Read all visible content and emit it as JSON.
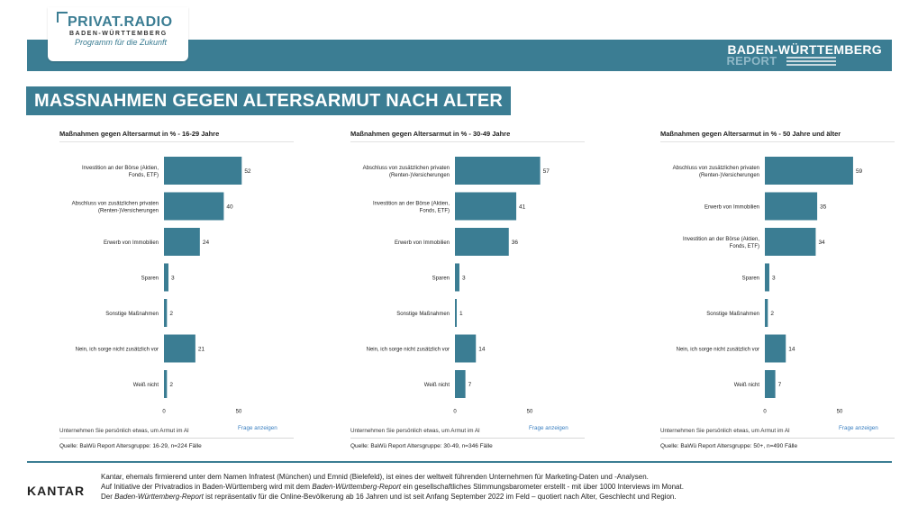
{
  "brand": {
    "logo_title": "PRIVAT.RADIO",
    "logo_subtitle": "BADEN-WÜRTTEMBERG",
    "logo_tagline": "Programm für die Zukunft",
    "report_line1": "BADEN-WÜRTTEMBERG",
    "report_line2": "REPORT",
    "accent_color": "#3b7d93"
  },
  "main_title": "MASSNAHMEN GEGEN ALTERSARMUT NACH ALTER",
  "panels": [
    {
      "title": "Maßnahmen gegen Altersarmut in % - 16-29 Jahre",
      "question": "Unternehmen Sie persönlich etwas, um Armut im Al",
      "link": "Frage anzeigen",
      "source": "Quelle: BaWü Report Altersgruppe: 16-29, n=224 Fälle"
    },
    {
      "title": "Maßnahmen gegen Altersarmut in % - 30-49 Jahre",
      "question": "Unternehmen Sie persönlich etwas, um Armut im Al",
      "link": "Frage anzeigen",
      "source": "Quelle: BaWü Report Altersgruppe: 30-49, n=346 Fälle"
    },
    {
      "title": "Maßnahmen gegen Altersarmut in % - 50 Jahre und älter",
      "question": "Unternehmen Sie persönlich etwas, um Armut im Al",
      "link": "Frage anzeigen",
      "source": "Quelle: BaWü Report Altersgruppe: 50+, n=490 Fälle"
    }
  ],
  "chart_data": [
    {
      "type": "bar",
      "title": "Maßnahmen gegen Altersarmut in % - 16-29 Jahre",
      "categories": [
        [
          "Investition an der Börse (Aktien,",
          "Fonds, ETF)"
        ],
        [
          "Abschluss von zusätzlichen privaten",
          "(Renten-)Versicherungen"
        ],
        [
          "Erwerb von Immobilien"
        ],
        [
          "Sparen"
        ],
        [
          "Sonstige Maßnahmen"
        ],
        [
          "Nein, ich sorge nicht zusätzlich vor"
        ],
        [
          "Weiß nicht"
        ]
      ],
      "values": [
        52,
        40,
        24,
        3,
        2,
        21,
        2
      ],
      "xlim": [
        0,
        100
      ],
      "xticks": [
        0,
        50
      ],
      "color": "#3b7d93"
    },
    {
      "type": "bar",
      "title": "Maßnahmen gegen Altersarmut in % - 30-49 Jahre",
      "categories": [
        [
          "Abschluss von zusätzlichen privaten",
          "(Renten-)Versicherungen"
        ],
        [
          "Investition an der Börse (Aktien,",
          "Fonds, ETF)"
        ],
        [
          "Erwerb von Immobilien"
        ],
        [
          "Sparen"
        ],
        [
          "Sonstige Maßnahmen"
        ],
        [
          "Nein, ich sorge nicht zusätzlich vor"
        ],
        [
          "Weiß nicht"
        ]
      ],
      "values": [
        57,
        41,
        36,
        3,
        1,
        14,
        7
      ],
      "xlim": [
        0,
        100
      ],
      "xticks": [
        0,
        50
      ],
      "color": "#3b7d93"
    },
    {
      "type": "bar",
      "title": "Maßnahmen gegen Altersarmut in % - 50 Jahre und älter",
      "categories": [
        [
          "Abschluss von zusätzlichen privaten",
          "(Renten-)Versicherungen"
        ],
        [
          "Erwerb von Immobilien"
        ],
        [
          "Investition an der Börse (Aktien,",
          "Fonds, ETF)"
        ],
        [
          "Sparen"
        ],
        [
          "Sonstige Maßnahmen"
        ],
        [
          "Nein, ich sorge nicht zusätzlich vor"
        ],
        [
          "Weiß nicht"
        ]
      ],
      "values": [
        59,
        35,
        34,
        3,
        2,
        14,
        7
      ],
      "xlim": [
        0,
        100
      ],
      "xticks": [
        0,
        50
      ],
      "color": "#3b7d93"
    }
  ],
  "footer": {
    "logo": "KANTAR",
    "line1": "Kantar, ehemals firmierend unter dem Namen Infratest (München) und Emnid  (Bielefeld), ist eines der weltweit führenden Unternehmen für Marketing-Daten und -Analysen.",
    "line2_a": "Auf Initiative der Privatradios in  Baden-Württemberg wird mit dem ",
    "line2_em": "Baden-Württemberg-Report",
    "line2_b": " ein gesellschaftliches Stimmungsbarometer erstellt - mit über 1000 Interviews im Monat.",
    "line3_a": "Der ",
    "line3_em": "Baden-Württemberg-Report",
    "line3_b": " ist repräsentativ für die Online-Bevölkerung ab 16 Jahren und ist seit Anfang September 2022 im Feld – quotiert nach Alter, Geschlecht und Region."
  }
}
